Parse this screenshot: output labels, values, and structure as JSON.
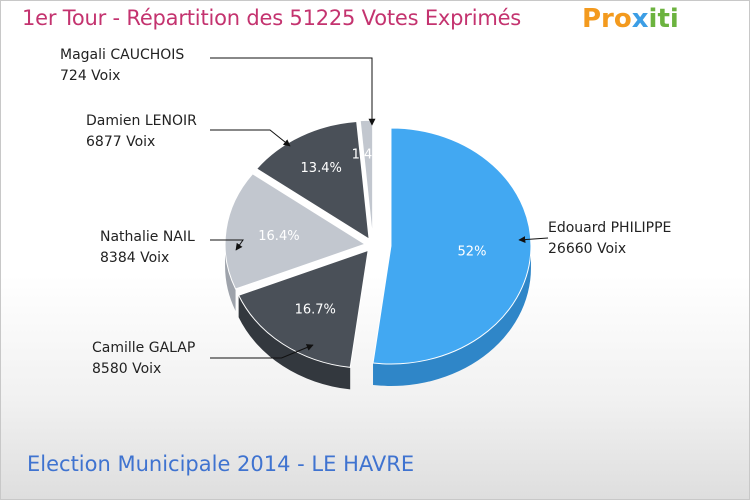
{
  "header": {
    "title": "1er Tour - Répartition des 51225 Votes Exprimés",
    "logo_parts": [
      "Pro",
      "x",
      "iti"
    ]
  },
  "footer": {
    "text": "Election Municipale 2014 - LE HAVRE"
  },
  "chart_data": {
    "type": "pie",
    "title": "1er Tour - Répartition des 51225 Votes Exprimés",
    "total_votes": 51225,
    "slices": [
      {
        "name": "Edouard PHILIPPE",
        "votes": 26660,
        "votes_label": "26660 Voix",
        "percent": 52,
        "percent_label": "52%",
        "color": "#42a8f2",
        "side_color": "#2f86c8"
      },
      {
        "name": "Camille GALAP",
        "votes": 8580,
        "votes_label": "8580 Voix",
        "percent": 16.7,
        "percent_label": "16.7%",
        "color": "#4a5058",
        "side_color": "#33383e"
      },
      {
        "name": "Nathalie NAIL",
        "votes": 8384,
        "votes_label": "8384 Voix",
        "percent": 16.4,
        "percent_label": "16.4%",
        "color": "#c2c7cf",
        "side_color": "#9ea3ab"
      },
      {
        "name": "Damien LENOIR",
        "votes": 6877,
        "votes_label": "6877 Voix",
        "percent": 13.4,
        "percent_label": "13.4%",
        "color": "#4a5058",
        "side_color": "#33383e"
      },
      {
        "name": "Magali CAUCHOIS",
        "votes": 724,
        "votes_label": "724 Voix",
        "percent": 1.4,
        "percent_label": "1.4%",
        "color": "#c2c7cf",
        "side_color": "#9ea3ab"
      }
    ]
  }
}
